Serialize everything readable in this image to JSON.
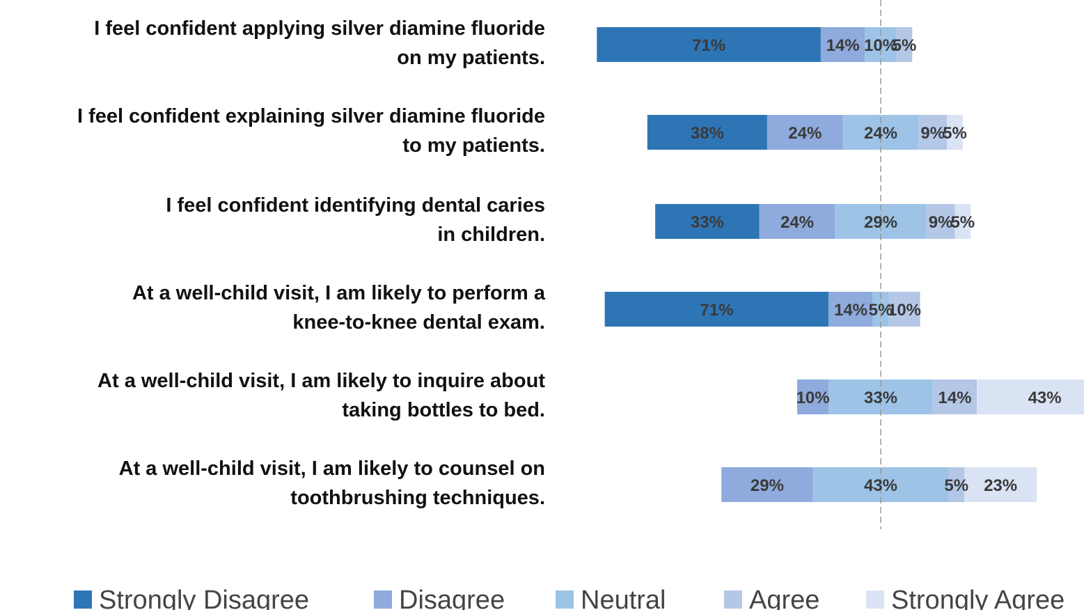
{
  "chart_data": {
    "type": "bar",
    "subtype": "diverging-stacked-horizontal",
    "categories": [
      [
        "I feel confident applying silver diamine fluoride",
        "on my patients."
      ],
      [
        "I feel confident explaining silver diamine fluoride",
        "to my patients."
      ],
      [
        "I feel confident identifying dental caries",
        "in children."
      ],
      [
        "At a well-child visit, I am likely to perform a",
        "knee-to-knee dental exam."
      ],
      [
        "At a well-child visit, I am likely to inquire about",
        "taking bottles to bed."
      ],
      [
        "At a well-child visit, I am likely to counsel on",
        "toothbrushing techniques."
      ]
    ],
    "series": [
      {
        "name": "Strongly Disagree",
        "color": "#2e75b6",
        "values": [
          71,
          38,
          33,
          71,
          0,
          0
        ],
        "labels": [
          "71%",
          "38%",
          "33%",
          "71%",
          "",
          ""
        ]
      },
      {
        "name": "Disagree",
        "color": "#8faadc",
        "values": [
          14,
          24,
          24,
          14,
          10,
          29
        ],
        "labels": [
          "14%",
          "24%",
          "24%",
          "14%",
          "10%",
          "29%"
        ]
      },
      {
        "name": "Neutral",
        "color": "#9dc3e6",
        "values": [
          10,
          24,
          29,
          5,
          33,
          43
        ],
        "labels": [
          "10%",
          "24%",
          "29%",
          "5%",
          "33%",
          "43%"
        ]
      },
      {
        "name": "Agree",
        "color": "#b4c7e7",
        "values": [
          5,
          9,
          9,
          10,
          14,
          5
        ],
        "labels": [
          "5%",
          "9%",
          "9%",
          "10%",
          "14%",
          "5%"
        ]
      },
      {
        "name": "Strongly Agree",
        "color": "#dae3f3",
        "values": [
          0,
          5,
          5,
          0,
          43,
          23
        ],
        "labels": [
          "",
          "5%",
          "5%",
          "",
          "43%",
          "23%"
        ]
      }
    ],
    "center_line": "midpoint of Neutral",
    "grid": false,
    "legend_position": "bottom"
  }
}
